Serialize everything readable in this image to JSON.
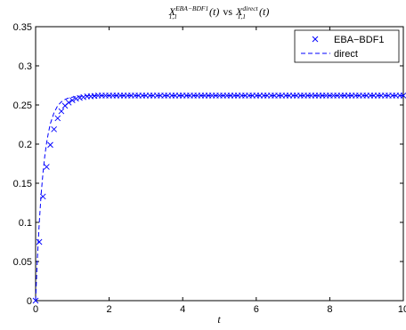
{
  "chart_data": {
    "type": "line",
    "title": {
      "lhs_base": "X",
      "lhs_sup": "EBA−BDF1",
      "lhs_sub": "1,1",
      "lhs_arg": "(t)",
      "vs": "vs",
      "rhs_base": "X",
      "rhs_sup": "direct",
      "rhs_sub": "1,1",
      "rhs_arg": "(t)"
    },
    "xlabel": "t",
    "ylabel": "",
    "xlim": [
      0,
      10
    ],
    "ylim": [
      0,
      0.35
    ],
    "x_ticks": [
      0,
      2,
      4,
      6,
      8,
      10
    ],
    "x_tick_labels": [
      "0",
      "2",
      "4",
      "6",
      "8",
      "10"
    ],
    "y_ticks": [
      0,
      0.05,
      0.1,
      0.15,
      0.2,
      0.25,
      0.3,
      0.35
    ],
    "y_tick_labels": [
      "0",
      "0.05",
      "0.1",
      "0.15",
      "0.2",
      "0.25",
      "0.3",
      "0.35"
    ],
    "grid": false,
    "legend_position": "top-right",
    "series": [
      {
        "name": "EBA−BDF1",
        "style": "x-markers",
        "color": "#0000ff",
        "x": [
          0,
          0.1,
          0.2,
          0.3,
          0.4,
          0.5,
          0.6,
          0.7,
          0.8,
          0.9,
          1.0,
          1.1,
          1.2,
          1.3,
          1.4,
          1.5,
          1.6,
          1.7,
          1.8,
          1.9,
          2.0,
          2.1,
          2.2,
          2.3,
          2.4,
          2.5,
          2.6,
          2.7,
          2.8,
          2.9,
          3.0,
          3.1,
          3.2,
          3.3,
          3.4,
          3.5,
          3.6,
          3.7,
          3.8,
          3.9,
          4.0,
          4.1,
          4.2,
          4.3,
          4.4,
          4.5,
          4.6,
          4.7,
          4.8,
          4.9,
          5.0,
          5.1,
          5.2,
          5.3,
          5.4,
          5.5,
          5.6,
          5.7,
          5.8,
          5.9,
          6.0,
          6.1,
          6.2,
          6.3,
          6.4,
          6.5,
          6.6,
          6.7,
          6.8,
          6.9,
          7.0,
          7.1,
          7.2,
          7.3,
          7.4,
          7.5,
          7.6,
          7.7,
          7.8,
          7.9,
          8.0,
          8.1,
          8.2,
          8.3,
          8.4,
          8.5,
          8.6,
          8.7,
          8.8,
          8.9,
          9.0,
          9.1,
          9.2,
          9.3,
          9.4,
          9.5,
          9.6,
          9.7,
          9.8,
          9.9,
          10.0
        ],
        "y": [
          0,
          0.075,
          0.133,
          0.171,
          0.199,
          0.219,
          0.233,
          0.242,
          0.249,
          0.253,
          0.256,
          0.258,
          0.259,
          0.26,
          0.261,
          0.261,
          0.2615,
          0.262,
          0.262,
          0.262,
          0.262,
          0.262,
          0.262,
          0.262,
          0.262,
          0.262,
          0.262,
          0.262,
          0.262,
          0.262,
          0.262,
          0.262,
          0.262,
          0.262,
          0.262,
          0.262,
          0.262,
          0.262,
          0.262,
          0.262,
          0.262,
          0.262,
          0.262,
          0.262,
          0.262,
          0.262,
          0.262,
          0.262,
          0.262,
          0.262,
          0.262,
          0.262,
          0.262,
          0.262,
          0.262,
          0.262,
          0.262,
          0.262,
          0.262,
          0.262,
          0.262,
          0.262,
          0.262,
          0.262,
          0.262,
          0.262,
          0.262,
          0.262,
          0.262,
          0.262,
          0.262,
          0.262,
          0.262,
          0.262,
          0.262,
          0.262,
          0.262,
          0.262,
          0.262,
          0.262,
          0.262,
          0.262,
          0.262,
          0.262,
          0.262,
          0.262,
          0.262,
          0.262,
          0.262,
          0.262,
          0.262,
          0.262,
          0.262,
          0.262,
          0.262,
          0.262,
          0.262,
          0.262,
          0.262,
          0.262,
          0.262
        ]
      },
      {
        "name": "direct",
        "style": "dashed-line",
        "color": "#0000ff",
        "x": [
          0,
          0.05,
          0.1,
          0.15,
          0.2,
          0.25,
          0.3,
          0.35,
          0.4,
          0.5,
          0.6,
          0.7,
          0.8,
          0.9,
          1.0,
          1.2,
          1.4,
          1.6,
          1.8,
          2.0,
          3.0,
          4.0,
          5.0,
          6.0,
          7.0,
          8.0,
          9.0,
          10.0
        ],
        "y": [
          0,
          0.056,
          0.1,
          0.136,
          0.163,
          0.185,
          0.202,
          0.215,
          0.226,
          0.24,
          0.249,
          0.254,
          0.257,
          0.259,
          0.26,
          0.2612,
          0.2617,
          0.2619,
          0.262,
          0.262,
          0.262,
          0.262,
          0.262,
          0.262,
          0.262,
          0.262,
          0.262,
          0.262
        ]
      }
    ]
  }
}
